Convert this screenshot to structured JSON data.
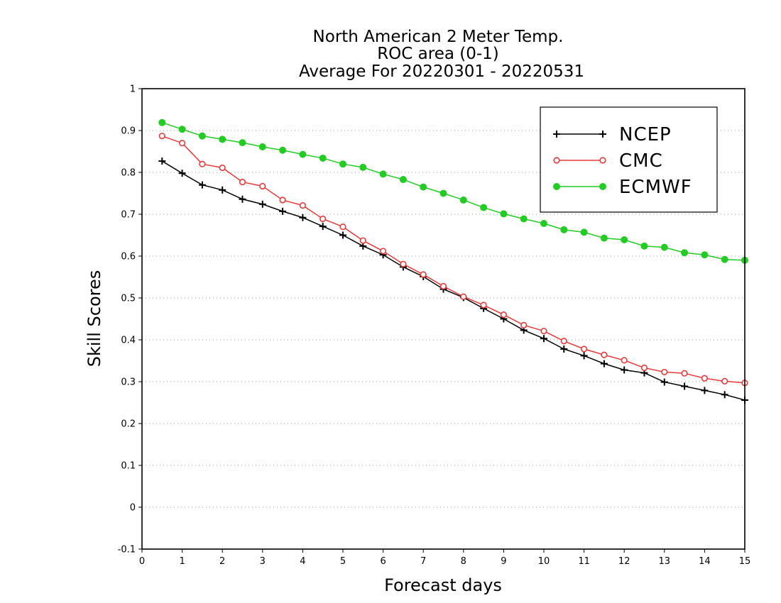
{
  "chart_data": {
    "type": "line",
    "title_lines": [
      "North American 2 Meter Temp.",
      "ROC area (0-1)",
      "Average For 20220301 - 20220531"
    ],
    "xlabel": "Forecast days",
    "ylabel": "Skill Scores",
    "xlim": [
      0,
      15
    ],
    "ylim": [
      -0.1,
      1
    ],
    "x_ticks": [
      "0",
      "1",
      "2",
      "3",
      "4",
      "5",
      "6",
      "7",
      "8",
      "9",
      "10",
      "11",
      "12",
      "13",
      "14",
      "15"
    ],
    "y_ticks": [
      "-0.1",
      "0",
      "0.1",
      "0.2",
      "0.3",
      "0.4",
      "0.5",
      "0.6",
      "0.7",
      "0.8",
      "0.9",
      "1"
    ],
    "grid": "horizontal dotted",
    "legend_position": "top-right",
    "x": [
      0.5,
      1,
      1.5,
      2,
      2.5,
      3,
      3.5,
      4,
      4.5,
      5,
      5.5,
      6,
      6.5,
      7,
      7.5,
      8,
      8.5,
      9,
      9.5,
      10,
      10.5,
      11,
      11.5,
      12,
      12.5,
      13,
      13.5,
      14,
      14.5,
      15
    ],
    "series": [
      {
        "name": "NCEP",
        "color": "#000000",
        "marker": "plus",
        "values": [
          0.827,
          0.798,
          0.77,
          0.758,
          0.736,
          0.724,
          0.707,
          0.692,
          0.671,
          0.65,
          0.624,
          0.603,
          0.574,
          0.551,
          0.521,
          0.501,
          0.475,
          0.45,
          0.423,
          0.403,
          0.378,
          0.362,
          0.343,
          0.328,
          0.321,
          0.299,
          0.289,
          0.279,
          0.269,
          0.256
        ]
      },
      {
        "name": "CMC",
        "color": "#e83a3a",
        "marker": "open-circle",
        "values": [
          0.887,
          0.87,
          0.82,
          0.811,
          0.777,
          0.767,
          0.734,
          0.721,
          0.689,
          0.67,
          0.637,
          0.612,
          0.581,
          0.556,
          0.528,
          0.503,
          0.483,
          0.46,
          0.435,
          0.421,
          0.397,
          0.378,
          0.364,
          0.351,
          0.333,
          0.323,
          0.32,
          0.308,
          0.301,
          0.297
        ]
      },
      {
        "name": "ECMWF",
        "color": "#22cc22",
        "marker": "filled-circle",
        "values": [
          0.919,
          0.903,
          0.887,
          0.879,
          0.871,
          0.861,
          0.853,
          0.843,
          0.834,
          0.82,
          0.812,
          0.796,
          0.783,
          0.765,
          0.75,
          0.734,
          0.716,
          0.701,
          0.689,
          0.678,
          0.663,
          0.657,
          0.643,
          0.639,
          0.624,
          0.621,
          0.608,
          0.603,
          0.592,
          0.59
        ]
      }
    ]
  }
}
